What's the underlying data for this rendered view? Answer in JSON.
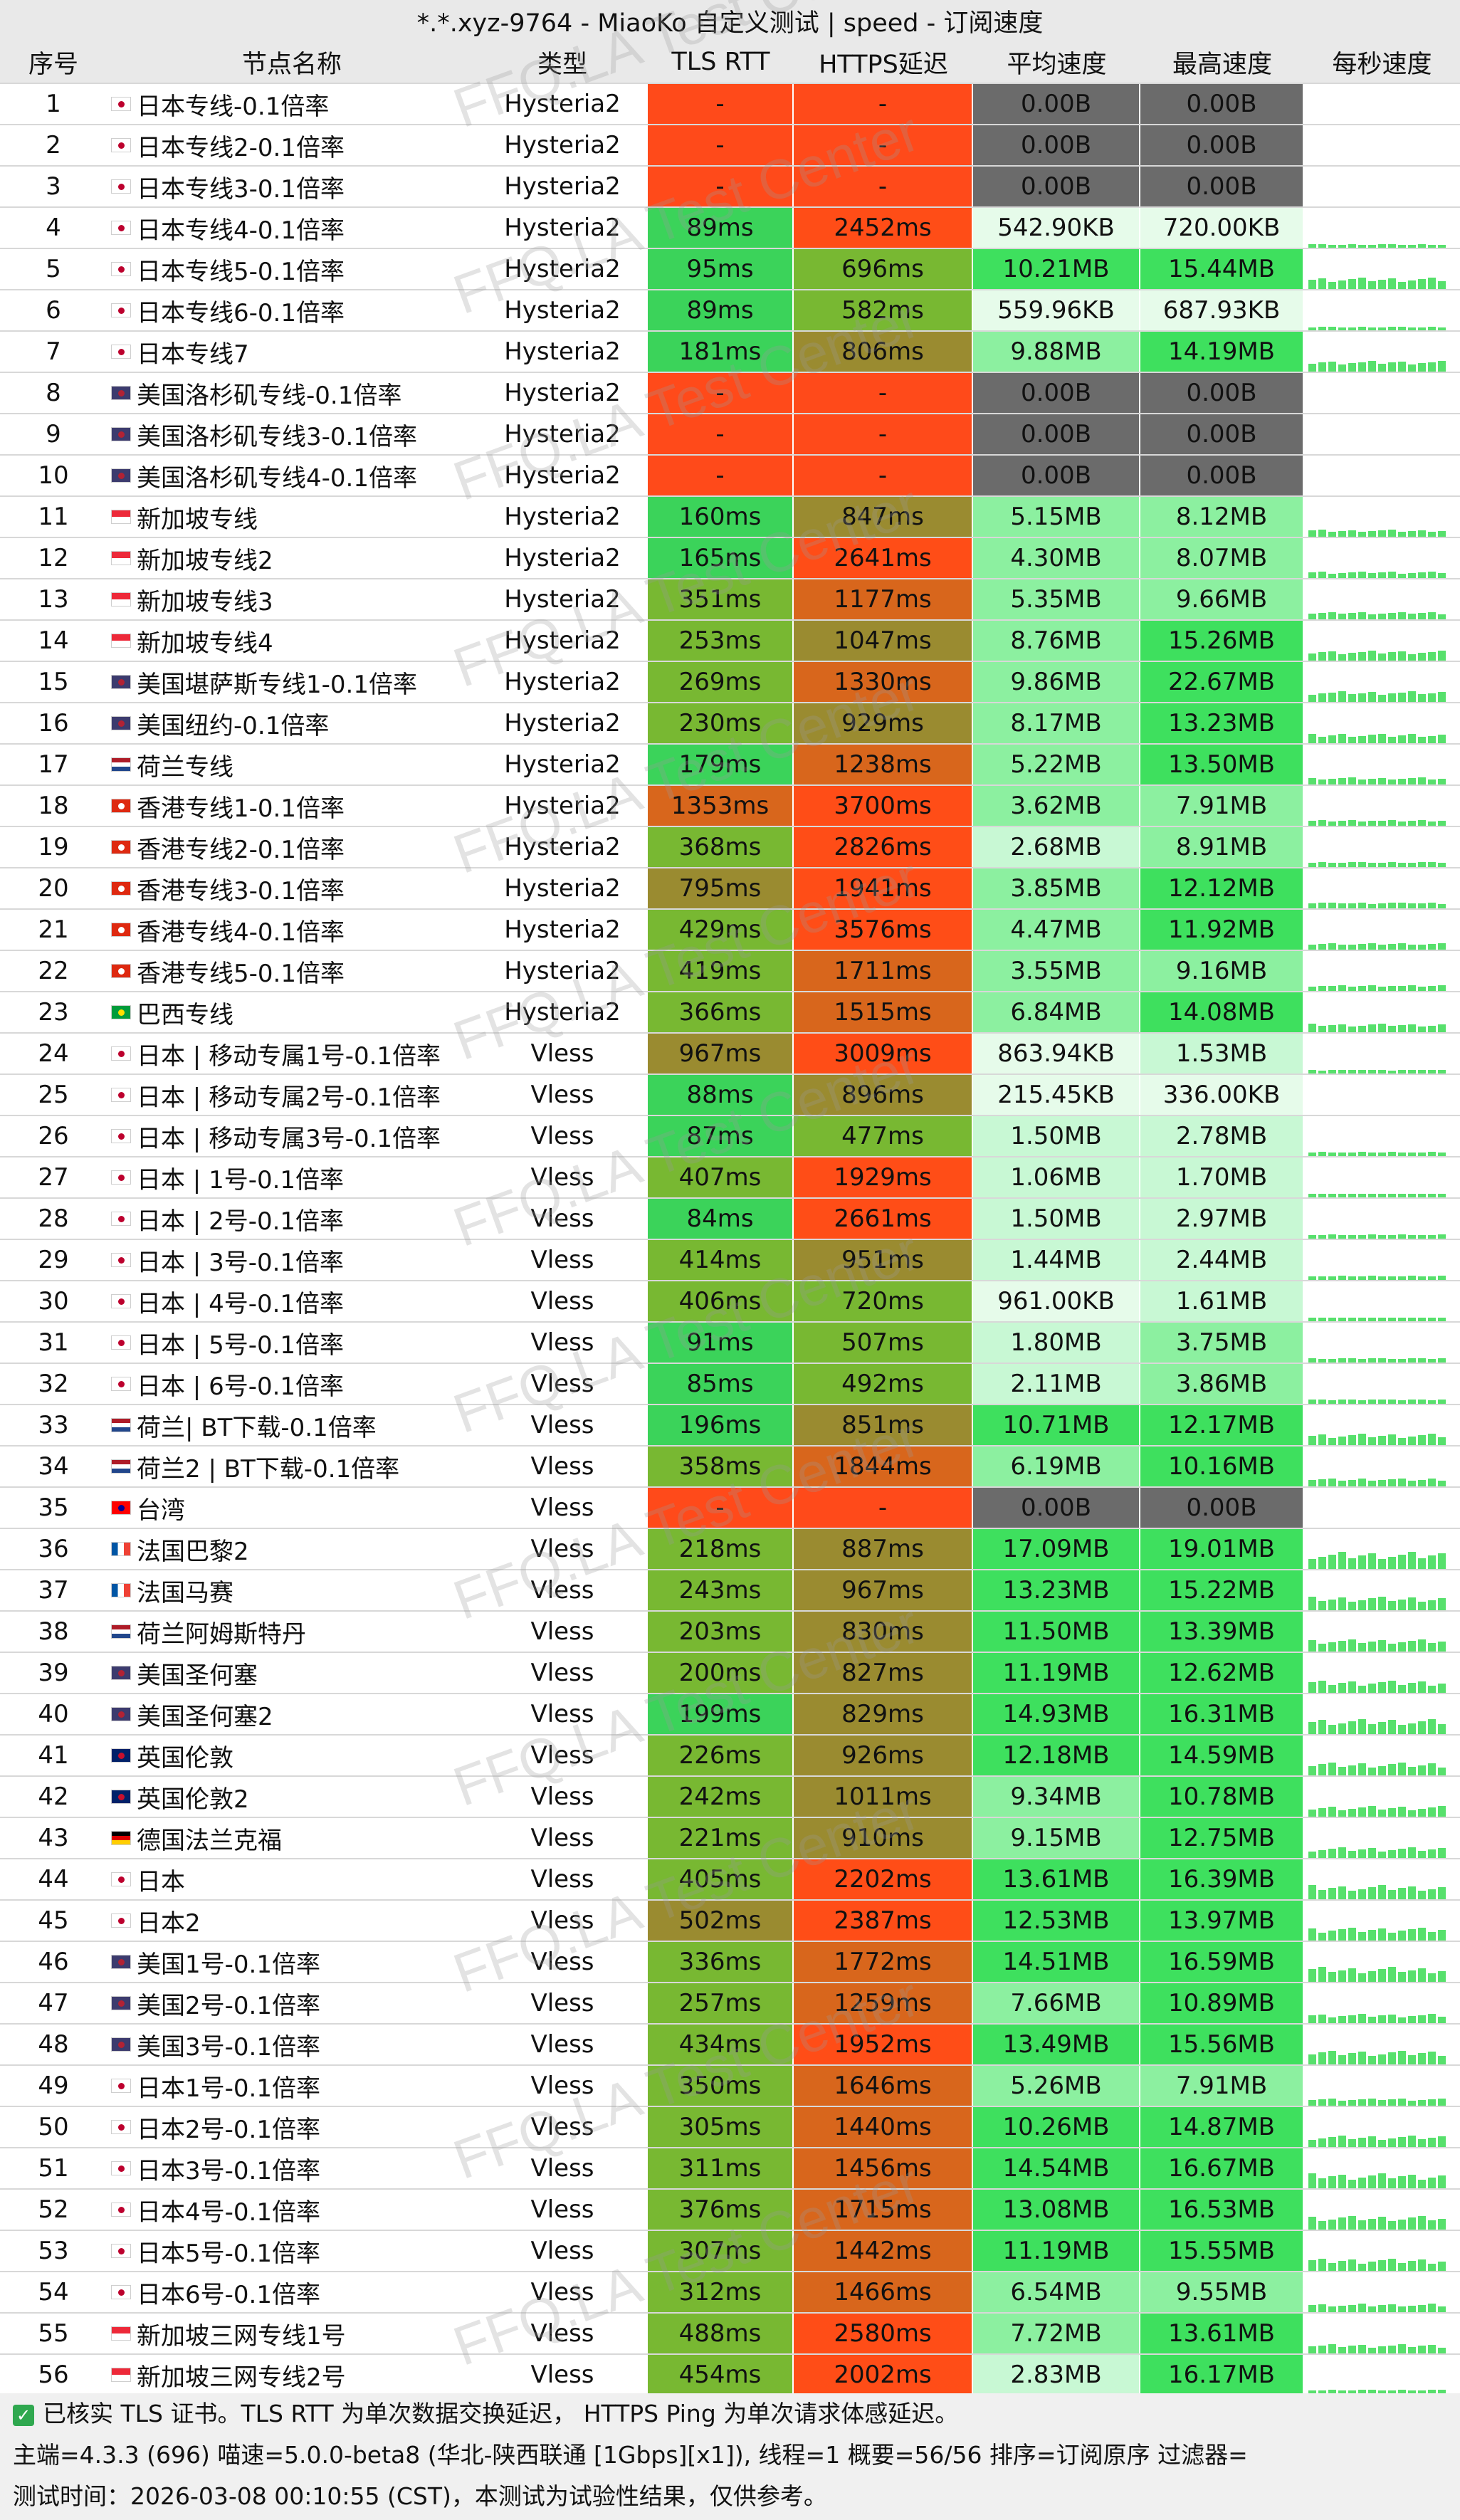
{
  "title": "*.*.xyz-9764 - MiaoKo 自定义测试 | speed - 订阅速度",
  "watermark": "FFQ.LA Test Center",
  "headers": [
    "序号",
    "节点名称",
    "类型",
    "TLS RTT",
    "HTTPS延迟",
    "平均速度",
    "最高速度",
    "每秒速度"
  ],
  "colors": {
    "fail": "#ff4a1a",
    "zero": "#6b6b6b",
    "good": "#3bd35a",
    "mid": "#78b832",
    "olive": "#9a8b30",
    "orange": "#d8661c",
    "red": "#ff4d17",
    "sp_dark": "#3ee05e",
    "sp_mid": "#8cf0a0",
    "sp_light": "#c8f8d4",
    "sp_pale": "#e6fbea"
  },
  "rows": [
    {
      "no": "1",
      "flag": "jp",
      "name": "日本专线-0.1倍率",
      "type": "Hysteria2",
      "tls": "-",
      "https": "-",
      "avg": "0.00B",
      "max": "0.00B"
    },
    {
      "no": "2",
      "flag": "jp",
      "name": "日本专线2-0.1倍率",
      "type": "Hysteria2",
      "tls": "-",
      "https": "-",
      "avg": "0.00B",
      "max": "0.00B"
    },
    {
      "no": "3",
      "flag": "jp",
      "name": "日本专线3-0.1倍率",
      "type": "Hysteria2",
      "tls": "-",
      "https": "-",
      "avg": "0.00B",
      "max": "0.00B"
    },
    {
      "no": "4",
      "flag": "jp",
      "name": "日本专线4-0.1倍率",
      "type": "Hysteria2",
      "tls": "89ms",
      "https": "2452ms",
      "avg": "542.90KB",
      "max": "720.00KB"
    },
    {
      "no": "5",
      "flag": "jp",
      "name": "日本专线5-0.1倍率",
      "type": "Hysteria2",
      "tls": "95ms",
      "https": "696ms",
      "avg": "10.21MB",
      "max": "15.44MB"
    },
    {
      "no": "6",
      "flag": "jp",
      "name": "日本专线6-0.1倍率",
      "type": "Hysteria2",
      "tls": "89ms",
      "https": "582ms",
      "avg": "559.96KB",
      "max": "687.93KB"
    },
    {
      "no": "7",
      "flag": "jp",
      "name": "日本专线7",
      "type": "Hysteria2",
      "tls": "181ms",
      "https": "806ms",
      "avg": "9.88MB",
      "max": "14.19MB"
    },
    {
      "no": "8",
      "flag": "us",
      "name": "美国洛杉矶专线-0.1倍率",
      "type": "Hysteria2",
      "tls": "-",
      "https": "-",
      "avg": "0.00B",
      "max": "0.00B"
    },
    {
      "no": "9",
      "flag": "us",
      "name": "美国洛杉矶专线3-0.1倍率",
      "type": "Hysteria2",
      "tls": "-",
      "https": "-",
      "avg": "0.00B",
      "max": "0.00B"
    },
    {
      "no": "10",
      "flag": "us",
      "name": "美国洛杉矶专线4-0.1倍率",
      "type": "Hysteria2",
      "tls": "-",
      "https": "-",
      "avg": "0.00B",
      "max": "0.00B"
    },
    {
      "no": "11",
      "flag": "sg",
      "name": "新加坡专线",
      "type": "Hysteria2",
      "tls": "160ms",
      "https": "847ms",
      "avg": "5.15MB",
      "max": "8.12MB"
    },
    {
      "no": "12",
      "flag": "sg",
      "name": "新加坡专线2",
      "type": "Hysteria2",
      "tls": "165ms",
      "https": "2641ms",
      "avg": "4.30MB",
      "max": "8.07MB"
    },
    {
      "no": "13",
      "flag": "sg",
      "name": "新加坡专线3",
      "type": "Hysteria2",
      "tls": "351ms",
      "https": "1177ms",
      "avg": "5.35MB",
      "max": "9.66MB"
    },
    {
      "no": "14",
      "flag": "sg",
      "name": "新加坡专线4",
      "type": "Hysteria2",
      "tls": "253ms",
      "https": "1047ms",
      "avg": "8.76MB",
      "max": "15.26MB"
    },
    {
      "no": "15",
      "flag": "us",
      "name": "美国堪萨斯专线1-0.1倍率",
      "type": "Hysteria2",
      "tls": "269ms",
      "https": "1330ms",
      "avg": "9.86MB",
      "max": "22.67MB"
    },
    {
      "no": "16",
      "flag": "us",
      "name": "美国纽约-0.1倍率",
      "type": "Hysteria2",
      "tls": "230ms",
      "https": "929ms",
      "avg": "8.17MB",
      "max": "13.23MB"
    },
    {
      "no": "17",
      "flag": "nl",
      "name": "荷兰专线",
      "type": "Hysteria2",
      "tls": "179ms",
      "https": "1238ms",
      "avg": "5.22MB",
      "max": "13.50MB"
    },
    {
      "no": "18",
      "flag": "hk",
      "name": "香港专线1-0.1倍率",
      "type": "Hysteria2",
      "tls": "1353ms",
      "https": "3700ms",
      "avg": "3.62MB",
      "max": "7.91MB"
    },
    {
      "no": "19",
      "flag": "hk",
      "name": "香港专线2-0.1倍率",
      "type": "Hysteria2",
      "tls": "368ms",
      "https": "2826ms",
      "avg": "2.68MB",
      "max": "8.91MB"
    },
    {
      "no": "20",
      "flag": "hk",
      "name": "香港专线3-0.1倍率",
      "type": "Hysteria2",
      "tls": "795ms",
      "https": "1941ms",
      "avg": "3.85MB",
      "max": "12.12MB"
    },
    {
      "no": "21",
      "flag": "hk",
      "name": "香港专线4-0.1倍率",
      "type": "Hysteria2",
      "tls": "429ms",
      "https": "3576ms",
      "avg": "4.47MB",
      "max": "11.92MB"
    },
    {
      "no": "22",
      "flag": "hk",
      "name": "香港专线5-0.1倍率",
      "type": "Hysteria2",
      "tls": "419ms",
      "https": "1711ms",
      "avg": "3.55MB",
      "max": "9.16MB"
    },
    {
      "no": "23",
      "flag": "br",
      "name": "巴西专线",
      "type": "Hysteria2",
      "tls": "366ms",
      "https": "1515ms",
      "avg": "6.84MB",
      "max": "14.08MB"
    },
    {
      "no": "24",
      "flag": "jp",
      "name": "日本 | 移动专属1号-0.1倍率",
      "type": "Vless",
      "tls": "967ms",
      "https": "3009ms",
      "avg": "863.94KB",
      "max": "1.53MB"
    },
    {
      "no": "25",
      "flag": "jp",
      "name": "日本 | 移动专属2号-0.1倍率",
      "type": "Vless",
      "tls": "88ms",
      "https": "896ms",
      "avg": "215.45KB",
      "max": "336.00KB"
    },
    {
      "no": "26",
      "flag": "jp",
      "name": "日本 | 移动专属3号-0.1倍率",
      "type": "Vless",
      "tls": "87ms",
      "https": "477ms",
      "avg": "1.50MB",
      "max": "2.78MB"
    },
    {
      "no": "27",
      "flag": "jp",
      "name": "日本 | 1号-0.1倍率",
      "type": "Vless",
      "tls": "407ms",
      "https": "1929ms",
      "avg": "1.06MB",
      "max": "1.70MB"
    },
    {
      "no": "28",
      "flag": "jp",
      "name": "日本 | 2号-0.1倍率",
      "type": "Vless",
      "tls": "84ms",
      "https": "2661ms",
      "avg": "1.50MB",
      "max": "2.97MB"
    },
    {
      "no": "29",
      "flag": "jp",
      "name": "日本 | 3号-0.1倍率",
      "type": "Vless",
      "tls": "414ms",
      "https": "951ms",
      "avg": "1.44MB",
      "max": "2.44MB"
    },
    {
      "no": "30",
      "flag": "jp",
      "name": "日本 | 4号-0.1倍率",
      "type": "Vless",
      "tls": "406ms",
      "https": "720ms",
      "avg": "961.00KB",
      "max": "1.61MB"
    },
    {
      "no": "31",
      "flag": "jp",
      "name": "日本 | 5号-0.1倍率",
      "type": "Vless",
      "tls": "91ms",
      "https": "507ms",
      "avg": "1.80MB",
      "max": "3.75MB"
    },
    {
      "no": "32",
      "flag": "jp",
      "name": "日本 | 6号-0.1倍率",
      "type": "Vless",
      "tls": "85ms",
      "https": "492ms",
      "avg": "2.11MB",
      "max": "3.86MB"
    },
    {
      "no": "33",
      "flag": "nl",
      "name": "荷兰| BT下载-0.1倍率",
      "type": "Vless",
      "tls": "196ms",
      "https": "851ms",
      "avg": "10.71MB",
      "max": "12.17MB"
    },
    {
      "no": "34",
      "flag": "nl",
      "name": "荷兰2 | BT下载-0.1倍率",
      "type": "Vless",
      "tls": "358ms",
      "https": "1844ms",
      "avg": "6.19MB",
      "max": "10.16MB"
    },
    {
      "no": "35",
      "flag": "tw",
      "name": "台湾",
      "type": "Vless",
      "tls": "-",
      "https": "-",
      "avg": "0.00B",
      "max": "0.00B"
    },
    {
      "no": "36",
      "flag": "fr",
      "name": "法国巴黎2",
      "type": "Vless",
      "tls": "218ms",
      "https": "887ms",
      "avg": "17.09MB",
      "max": "19.01MB"
    },
    {
      "no": "37",
      "flag": "fr",
      "name": "法国马赛",
      "type": "Vless",
      "tls": "243ms",
      "https": "967ms",
      "avg": "13.23MB",
      "max": "15.22MB"
    },
    {
      "no": "38",
      "flag": "nl",
      "name": "荷兰阿姆斯特丹",
      "type": "Vless",
      "tls": "203ms",
      "https": "830ms",
      "avg": "11.50MB",
      "max": "13.39MB"
    },
    {
      "no": "39",
      "flag": "us",
      "name": "美国圣何塞",
      "type": "Vless",
      "tls": "200ms",
      "https": "827ms",
      "avg": "11.19MB",
      "max": "12.62MB"
    },
    {
      "no": "40",
      "flag": "us",
      "name": "美国圣何塞2",
      "type": "Vless",
      "tls": "199ms",
      "https": "829ms",
      "avg": "14.93MB",
      "max": "16.31MB"
    },
    {
      "no": "41",
      "flag": "gb",
      "name": "英国伦敦",
      "type": "Vless",
      "tls": "226ms",
      "https": "926ms",
      "avg": "12.18MB",
      "max": "14.59MB"
    },
    {
      "no": "42",
      "flag": "gb",
      "name": "英国伦敦2",
      "type": "Vless",
      "tls": "242ms",
      "https": "1011ms",
      "avg": "9.34MB",
      "max": "10.78MB"
    },
    {
      "no": "43",
      "flag": "de",
      "name": "德国法兰克福",
      "type": "Vless",
      "tls": "221ms",
      "https": "910ms",
      "avg": "9.15MB",
      "max": "12.75MB"
    },
    {
      "no": "44",
      "flag": "jp",
      "name": "日本",
      "type": "Vless",
      "tls": "405ms",
      "https": "2202ms",
      "avg": "13.61MB",
      "max": "16.39MB"
    },
    {
      "no": "45",
      "flag": "jp",
      "name": "日本2",
      "type": "Vless",
      "tls": "502ms",
      "https": "2387ms",
      "avg": "12.53MB",
      "max": "13.97MB"
    },
    {
      "no": "46",
      "flag": "us",
      "name": "美国1号-0.1倍率",
      "type": "Vless",
      "tls": "336ms",
      "https": "1772ms",
      "avg": "14.51MB",
      "max": "16.59MB"
    },
    {
      "no": "47",
      "flag": "us",
      "name": "美国2号-0.1倍率",
      "type": "Vless",
      "tls": "257ms",
      "https": "1259ms",
      "avg": "7.66MB",
      "max": "10.89MB"
    },
    {
      "no": "48",
      "flag": "us",
      "name": "美国3号-0.1倍率",
      "type": "Vless",
      "tls": "434ms",
      "https": "1952ms",
      "avg": "13.49MB",
      "max": "15.56MB"
    },
    {
      "no": "49",
      "flag": "jp",
      "name": "日本1号-0.1倍率",
      "type": "Vless",
      "tls": "350ms",
      "https": "1646ms",
      "avg": "5.26MB",
      "max": "7.91MB"
    },
    {
      "no": "50",
      "flag": "jp",
      "name": "日本2号-0.1倍率",
      "type": "Vless",
      "tls": "305ms",
      "https": "1440ms",
      "avg": "10.26MB",
      "max": "14.87MB"
    },
    {
      "no": "51",
      "flag": "jp",
      "name": "日本3号-0.1倍率",
      "type": "Vless",
      "tls": "311ms",
      "https": "1456ms",
      "avg": "14.54MB",
      "max": "16.67MB"
    },
    {
      "no": "52",
      "flag": "jp",
      "name": "日本4号-0.1倍率",
      "type": "Vless",
      "tls": "376ms",
      "https": "1715ms",
      "avg": "13.08MB",
      "max": "16.53MB"
    },
    {
      "no": "53",
      "flag": "jp",
      "name": "日本5号-0.1倍率",
      "type": "Vless",
      "tls": "307ms",
      "https": "1442ms",
      "avg": "11.19MB",
      "max": "15.55MB"
    },
    {
      "no": "54",
      "flag": "jp",
      "name": "日本6号-0.1倍率",
      "type": "Vless",
      "tls": "312ms",
      "https": "1466ms",
      "avg": "6.54MB",
      "max": "9.55MB"
    },
    {
      "no": "55",
      "flag": "sg",
      "name": "新加坡三网专线1号",
      "type": "Vless",
      "tls": "488ms",
      "https": "2580ms",
      "avg": "7.72MB",
      "max": "13.61MB"
    },
    {
      "no": "56",
      "flag": "sg",
      "name": "新加坡三网专线2号",
      "type": "Vless",
      "tls": "454ms",
      "https": "2002ms",
      "avg": "2.83MB",
      "max": "16.17MB"
    }
  ],
  "footer": {
    "line1": "已核实 TLS 证书。TLS RTT 为单次数据交换延迟， HTTPS Ping 为单次请求体感延迟。",
    "line2": "主端=4.3.3 (696) 喵速=5.0.0-beta8 (华北-陕西联通 [1Gbps][x1]), 线程=1 概要=56/56 排序=订阅原序 过滤器=",
    "line3": "测试时间：2026-03-08 00:10:55 (CST)，本测试为试验性结果，仅供参考。"
  }
}
